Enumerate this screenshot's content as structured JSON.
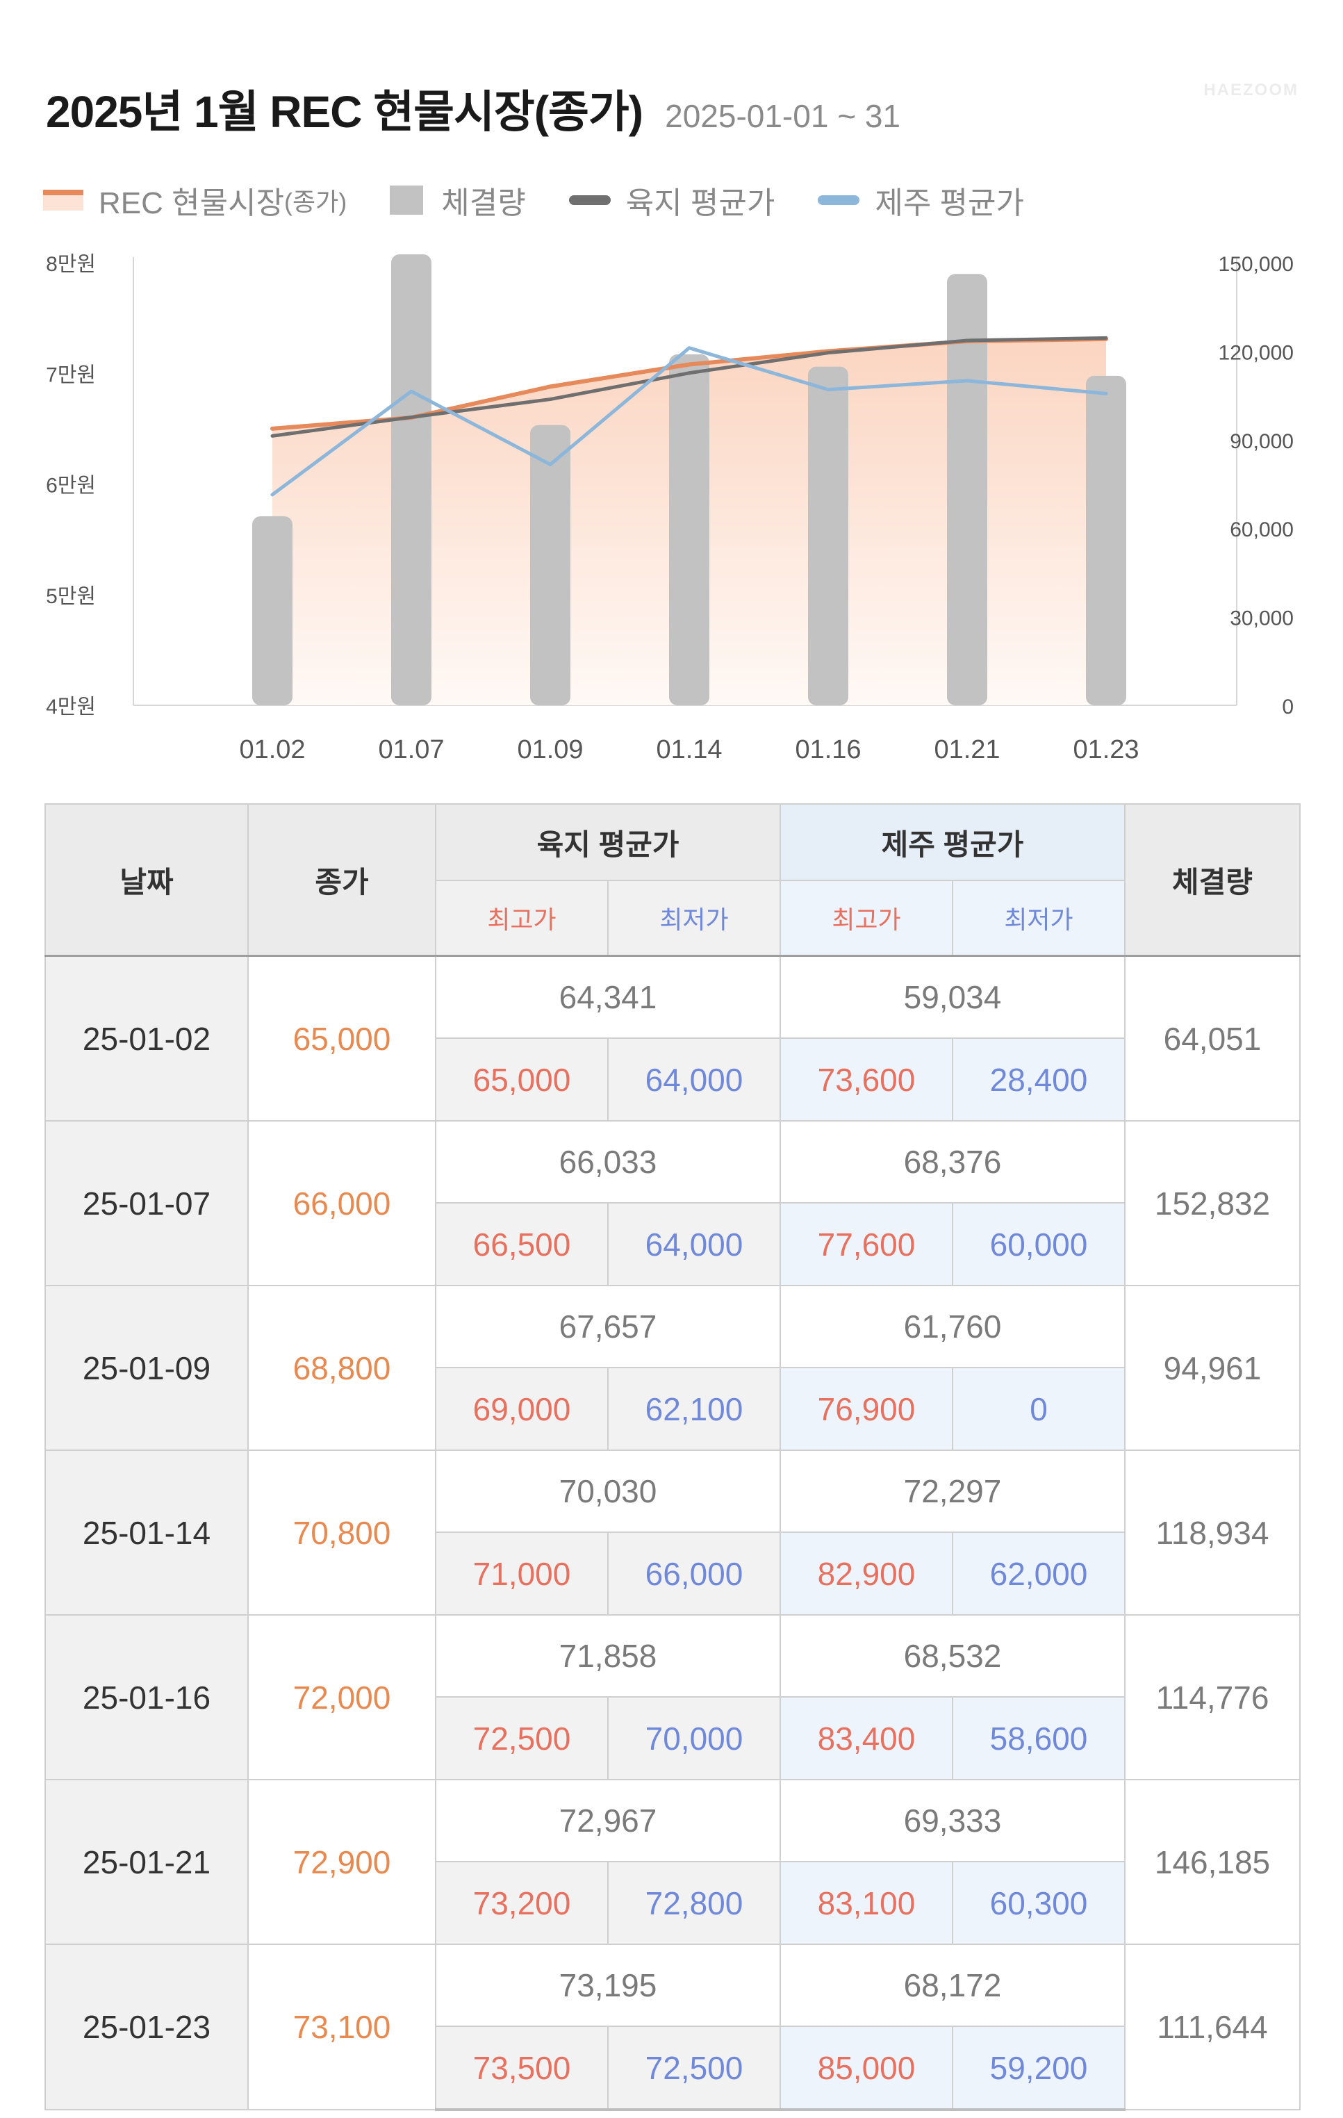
{
  "header": {
    "title": "2025년 1월 REC 현물시장(종가)",
    "subtitle": "2025-01-01 ~ 31",
    "watermark": "HAEZOOM"
  },
  "legend": {
    "rec": "REC 현물시장",
    "rec_sub": "(종가)",
    "volume": "체결량",
    "land_avg": "육지 평균가",
    "jeju_avg": "제주 평균가"
  },
  "colors": {
    "rec_line": "#e68a5b",
    "rec_area_top": "#fbd5c1",
    "rec_area_bottom": "#fff9f6",
    "volume_bar": "#c2c2c2",
    "land_line": "#6f6f6f",
    "jeju_line": "#8cb6da",
    "max_text": "#e8705f",
    "min_text": "#6f88d9",
    "close_text": "#e8894f"
  },
  "chart_data": {
    "type": "bar",
    "categories": [
      "01.02",
      "01.07",
      "01.09",
      "01.14",
      "01.16",
      "01.21",
      "01.23"
    ],
    "y_left_ticks": [
      "4만원",
      "5만원",
      "6만원",
      "7만원",
      "8만원"
    ],
    "y_left_range": [
      40000,
      80000
    ],
    "y_right_ticks": [
      "0",
      "30,000",
      "60,000",
      "90,000",
      "120,000",
      "150,000"
    ],
    "y_right_range": [
      0,
      150000
    ],
    "series": [
      {
        "name": "REC 현물시장(종가)",
        "type": "area",
        "axis": "left",
        "values": [
          65000,
          66000,
          68800,
          70800,
          72000,
          72900,
          73100
        ]
      },
      {
        "name": "체결량",
        "type": "bar",
        "axis": "right",
        "values": [
          64051,
          152832,
          94961,
          118934,
          114776,
          146185,
          111644
        ]
      },
      {
        "name": "육지 평균가",
        "type": "line",
        "axis": "left",
        "values": [
          64341,
          66033,
          67657,
          70030,
          71858,
          72967,
          73195
        ]
      },
      {
        "name": "제주 평균가",
        "type": "line",
        "axis": "left",
        "values": [
          59034,
          68376,
          61760,
          72297,
          68532,
          69333,
          68172
        ]
      }
    ],
    "grid": false,
    "legend_position": "top-left"
  },
  "table": {
    "headers": {
      "date": "날짜",
      "close": "종가",
      "land_avg": "육지 평균가",
      "jeju_avg": "제주 평균가",
      "volume": "체결량",
      "max": "최고가",
      "min": "최저가"
    },
    "rows": [
      {
        "date": "25-01-02",
        "close": "65,000",
        "land_avg": "64,341",
        "land_max": "65,000",
        "land_min": "64,000",
        "jeju_avg": "59,034",
        "jeju_max": "73,600",
        "jeju_min": "28,400",
        "volume": "64,051"
      },
      {
        "date": "25-01-07",
        "close": "66,000",
        "land_avg": "66,033",
        "land_max": "66,500",
        "land_min": "64,000",
        "jeju_avg": "68,376",
        "jeju_max": "77,600",
        "jeju_min": "60,000",
        "volume": "152,832"
      },
      {
        "date": "25-01-09",
        "close": "68,800",
        "land_avg": "67,657",
        "land_max": "69,000",
        "land_min": "62,100",
        "jeju_avg": "61,760",
        "jeju_max": "76,900",
        "jeju_min": "0",
        "volume": "94,961"
      },
      {
        "date": "25-01-14",
        "close": "70,800",
        "land_avg": "70,030",
        "land_max": "71,000",
        "land_min": "66,000",
        "jeju_avg": "72,297",
        "jeju_max": "82,900",
        "jeju_min": "62,000",
        "volume": "118,934"
      },
      {
        "date": "25-01-16",
        "close": "72,000",
        "land_avg": "71,858",
        "land_max": "72,500",
        "land_min": "70,000",
        "jeju_avg": "68,532",
        "jeju_max": "83,400",
        "jeju_min": "58,600",
        "volume": "114,776"
      },
      {
        "date": "25-01-21",
        "close": "72,900",
        "land_avg": "72,967",
        "land_max": "73,200",
        "land_min": "72,800",
        "jeju_avg": "69,333",
        "jeju_max": "83,100",
        "jeju_min": "60,300",
        "volume": "146,185"
      },
      {
        "date": "25-01-23",
        "close": "73,100",
        "land_avg": "73,195",
        "land_max": "73,500",
        "land_min": "72,500",
        "jeju_avg": "68,172",
        "jeju_max": "85,000",
        "jeju_min": "59,200",
        "volume": "111,644"
      }
    ]
  }
}
